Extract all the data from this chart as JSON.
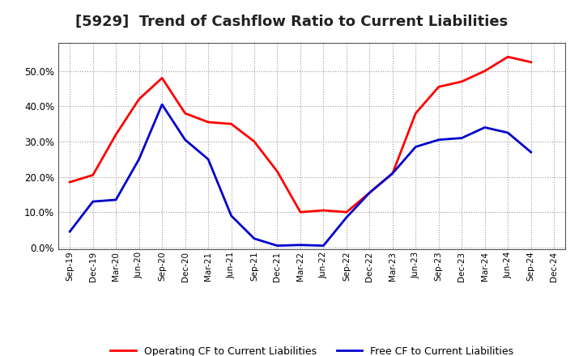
{
  "title": "[5929]  Trend of Cashflow Ratio to Current Liabilities",
  "x_labels": [
    "Sep-19",
    "Dec-19",
    "Mar-20",
    "Jun-20",
    "Sep-20",
    "Dec-20",
    "Mar-21",
    "Jun-21",
    "Sep-21",
    "Dec-21",
    "Mar-22",
    "Jun-22",
    "Sep-22",
    "Dec-22",
    "Mar-23",
    "Jun-23",
    "Sep-23",
    "Dec-23",
    "Mar-24",
    "Jun-24",
    "Sep-24",
    "Dec-24"
  ],
  "operating_cf": [
    0.185,
    0.205,
    0.32,
    0.42,
    0.48,
    0.38,
    0.355,
    0.35,
    0.3,
    0.215,
    0.1,
    0.105,
    0.1,
    0.155,
    0.21,
    0.38,
    0.455,
    0.47,
    0.5,
    0.54,
    0.525,
    null
  ],
  "free_cf": [
    0.045,
    0.13,
    0.135,
    0.25,
    0.405,
    0.305,
    0.25,
    0.09,
    0.025,
    0.005,
    0.007,
    0.005,
    0.085,
    0.155,
    0.21,
    0.285,
    0.305,
    0.31,
    0.34,
    0.325,
    0.27,
    null
  ],
  "operating_color": "#ff0000",
  "free_color": "#0000cc",
  "ylim": [
    -0.005,
    0.58
  ],
  "yticks": [
    0.0,
    0.1,
    0.2,
    0.3,
    0.4,
    0.5
  ],
  "background_color": "#ffffff",
  "plot_bg_color": "#ffffff",
  "grid_color": "#aaaaaa",
  "title_fontsize": 13,
  "legend_labels": [
    "Operating CF to Current Liabilities",
    "Free CF to Current Liabilities"
  ]
}
